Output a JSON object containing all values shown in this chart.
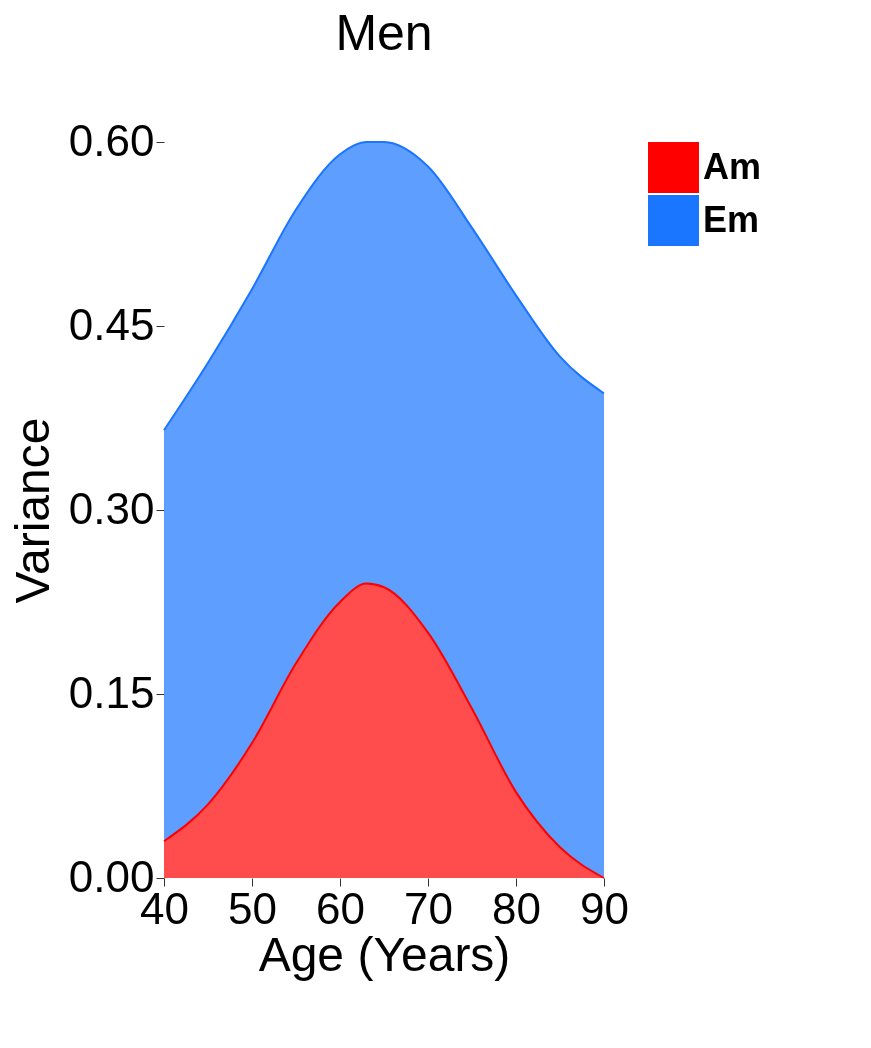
{
  "chart_data": {
    "type": "area",
    "title": "Men",
    "xlabel": "Age (Years)",
    "ylabel": "Variance",
    "stacked": true,
    "x": [
      40,
      45,
      50,
      55,
      60,
      63,
      65,
      70,
      75,
      80,
      85,
      90
    ],
    "series": [
      {
        "name": "Am",
        "color": "#ff0000",
        "values": [
          0.03,
          0.06,
          0.11,
          0.175,
          0.225,
          0.24,
          0.237,
          0.2,
          0.138,
          0.07,
          0.025,
          0
        ]
      },
      {
        "name": "Em",
        "color": "#1a75ff",
        "values": [
          0.335,
          0.36,
          0.37,
          0.37,
          0.365,
          0.36,
          0.363,
          0.38,
          0.392,
          0.405,
          0.4,
          0.395
        ]
      }
    ],
    "xlim": [
      40,
      90
    ],
    "xticks": [
      40,
      50,
      60,
      70,
      80,
      90
    ],
    "ylim": [
      0,
      0.6
    ],
    "yticks": [
      {
        "value": 0,
        "label": "0.00"
      },
      {
        "value": 0.15,
        "label": "0.15"
      },
      {
        "value": 0.3,
        "label": "0.30"
      },
      {
        "value": 0.45,
        "label": "0.45"
      },
      {
        "value": 0.6,
        "label": "0.60"
      }
    ],
    "grid": false,
    "legend": "right"
  }
}
